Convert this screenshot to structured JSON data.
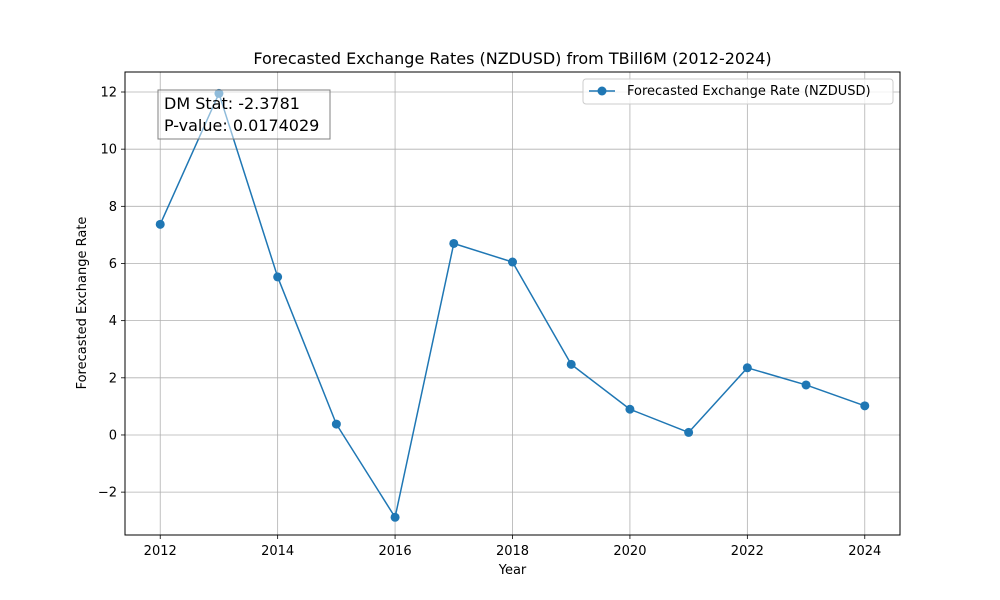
{
  "chart_data": {
    "type": "line",
    "title": "Forecasted Exchange Rates (NZDUSD) from TBill6M (2012-2024)",
    "xlabel": "Year",
    "ylabel": "Forecasted Exchange Rate",
    "xlim": [
      2011.4,
      2024.6
    ],
    "ylim": [
      -3.5,
      12.7
    ],
    "xticks": [
      2012,
      2014,
      2016,
      2018,
      2020,
      2022,
      2024
    ],
    "xtick_labels": [
      "2012",
      "2014",
      "2016",
      "2018",
      "2020",
      "2022",
      "2024"
    ],
    "yticks": [
      -2,
      0,
      2,
      4,
      6,
      8,
      10,
      12
    ],
    "ytick_labels": [
      "−2",
      "0",
      "2",
      "4",
      "6",
      "8",
      "10",
      "12"
    ],
    "grid": true,
    "legend_position": "top-right",
    "series": [
      {
        "name": "Forecasted Exchange Rate (NZDUSD)",
        "color": "#1f77b4",
        "marker": "circle",
        "x": [
          2012,
          2013,
          2014,
          2015,
          2016,
          2017,
          2018,
          2019,
          2020,
          2021,
          2022,
          2023,
          2024
        ],
        "y": [
          7.37,
          11.95,
          5.53,
          0.38,
          -2.88,
          6.7,
          6.05,
          2.47,
          0.9,
          0.09,
          2.35,
          1.75,
          1.02
        ]
      }
    ],
    "annotation": {
      "lines": [
        "DM Stat: -2.3781",
        "P-value: 0.0174029"
      ],
      "position": "top-left"
    }
  }
}
